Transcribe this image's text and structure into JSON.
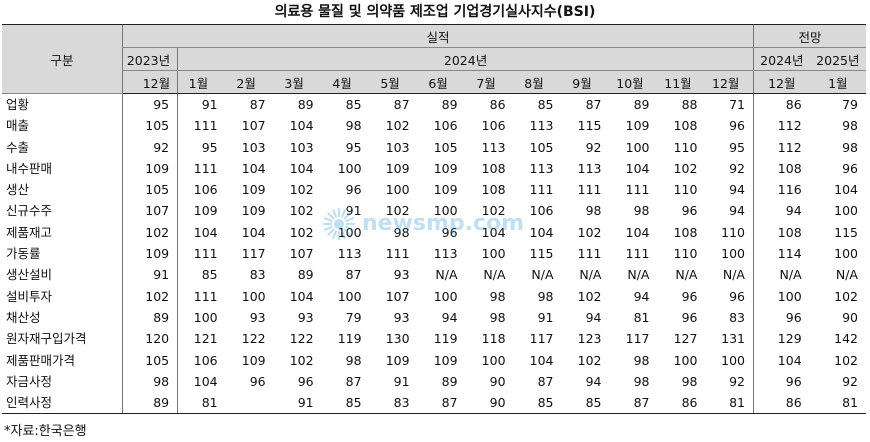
{
  "title": "의료용 물질 및 의약품 제조업 기업경기실사지수(BSI)",
  "header": {
    "category": "구분",
    "actual": "실적",
    "forecast": "전망",
    "year_2023": "2023년",
    "year_2024": "2024년",
    "forecast_year_2024": "2024년",
    "forecast_year_2025": "2025년",
    "months_actual": [
      "12월",
      "1월",
      "2월",
      "3월",
      "4월",
      "5월",
      "6월",
      "7월",
      "8월",
      "9월",
      "10월",
      "11월",
      "12월"
    ],
    "months_forecast": [
      "12월",
      "1월"
    ]
  },
  "rows": [
    {
      "label": "업황",
      "values": [
        "95",
        "91",
        "87",
        "89",
        "85",
        "87",
        "89",
        "86",
        "85",
        "87",
        "89",
        "88",
        "71",
        "86",
        "79"
      ]
    },
    {
      "label": "매출",
      "values": [
        "105",
        "111",
        "107",
        "104",
        "98",
        "102",
        "106",
        "106",
        "113",
        "115",
        "109",
        "108",
        "96",
        "112",
        "98"
      ]
    },
    {
      "label": "수출",
      "values": [
        "92",
        "95",
        "103",
        "103",
        "95",
        "103",
        "105",
        "113",
        "105",
        "92",
        "100",
        "110",
        "95",
        "112",
        "98"
      ]
    },
    {
      "label": "내수판매",
      "values": [
        "109",
        "111",
        "104",
        "104",
        "100",
        "109",
        "109",
        "108",
        "113",
        "113",
        "104",
        "102",
        "92",
        "108",
        "96"
      ]
    },
    {
      "label": "생산",
      "values": [
        "105",
        "106",
        "109",
        "102",
        "96",
        "100",
        "109",
        "108",
        "111",
        "111",
        "111",
        "110",
        "94",
        "116",
        "104"
      ]
    },
    {
      "label": "신규수주",
      "values": [
        "107",
        "109",
        "109",
        "102",
        "91",
        "102",
        "100",
        "102",
        "106",
        "98",
        "98",
        "96",
        "94",
        "94",
        "100"
      ]
    },
    {
      "label": "제품재고",
      "values": [
        "102",
        "104",
        "104",
        "102",
        "100",
        "98",
        "96",
        "104",
        "104",
        "102",
        "104",
        "108",
        "110",
        "108",
        "115"
      ]
    },
    {
      "label": "가동률",
      "values": [
        "109",
        "111",
        "117",
        "107",
        "113",
        "111",
        "113",
        "100",
        "115",
        "111",
        "111",
        "110",
        "100",
        "114",
        "100"
      ]
    },
    {
      "label": "생산설비",
      "values": [
        "91",
        "85",
        "83",
        "89",
        "87",
        "93",
        "N/A",
        "N/A",
        "N/A",
        "N/A",
        "N/A",
        "N/A",
        "N/A",
        "N/A",
        "N/A"
      ]
    },
    {
      "label": "설비투자",
      "values": [
        "102",
        "111",
        "100",
        "104",
        "100",
        "107",
        "100",
        "98",
        "98",
        "102",
        "94",
        "96",
        "96",
        "100",
        "102"
      ]
    },
    {
      "label": "채산성",
      "values": [
        "89",
        "100",
        "93",
        "93",
        "79",
        "93",
        "94",
        "98",
        "91",
        "94",
        "81",
        "96",
        "83",
        "96",
        "90"
      ]
    },
    {
      "label": "원자재구입가격",
      "values": [
        "120",
        "121",
        "122",
        "122",
        "119",
        "130",
        "119",
        "118",
        "117",
        "123",
        "117",
        "127",
        "131",
        "129",
        "142"
      ]
    },
    {
      "label": "제품판매가격",
      "values": [
        "105",
        "106",
        "109",
        "102",
        "98",
        "109",
        "109",
        "100",
        "104",
        "102",
        "98",
        "100",
        "100",
        "104",
        "102"
      ]
    },
    {
      "label": "자금사정",
      "values": [
        "98",
        "104",
        "96",
        "96",
        "87",
        "91",
        "89",
        "90",
        "87",
        "94",
        "98",
        "98",
        "92",
        "96",
        "92"
      ]
    },
    {
      "label": "인력사정",
      "values": [
        "89",
        "81",
        "",
        "91",
        "85",
        "83",
        "87",
        "90",
        "85",
        "85",
        "87",
        "86",
        "81",
        "86",
        "81"
      ]
    }
  ],
  "source": "*자료:한국은행",
  "watermark": {
    "text": "newsmp.com",
    "icon": "sunburst-logo-icon",
    "color": "#1c8fd6"
  }
}
